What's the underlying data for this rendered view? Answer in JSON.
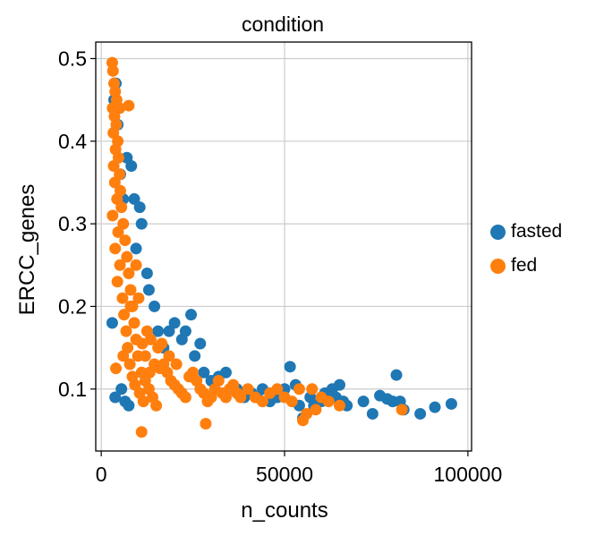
{
  "chart_data": {
    "type": "scatter",
    "title": "condition",
    "xlabel": "n_counts",
    "ylabel": "ERCC_genes",
    "xlim": [
      -1500,
      101000
    ],
    "ylim": [
      0.025,
      0.52
    ],
    "xticks": [
      0,
      50000,
      100000
    ],
    "xtick_labels": [
      "0",
      "50000",
      "100000"
    ],
    "yticks": [
      0.1,
      0.2,
      0.3,
      0.4,
      0.5
    ],
    "ytick_labels": [
      "0.1",
      "0.2",
      "0.3",
      "0.4",
      "0.5"
    ],
    "grid": true,
    "legend_position": "right",
    "series": [
      {
        "name": "fasted",
        "color": "#1f77b4",
        "points": [
          [
            3000,
            0.18
          ],
          [
            4500,
            0.42
          ],
          [
            5200,
            0.36
          ],
          [
            6000,
            0.33
          ],
          [
            7000,
            0.38
          ],
          [
            8200,
            0.37
          ],
          [
            9000,
            0.33
          ],
          [
            9500,
            0.27
          ],
          [
            10500,
            0.32
          ],
          [
            11000,
            0.3
          ],
          [
            12500,
            0.24
          ],
          [
            13000,
            0.22
          ],
          [
            14500,
            0.2
          ],
          [
            15500,
            0.17
          ],
          [
            17000,
            0.15
          ],
          [
            18500,
            0.17
          ],
          [
            20000,
            0.18
          ],
          [
            22000,
            0.16
          ],
          [
            23000,
            0.17
          ],
          [
            24500,
            0.19
          ],
          [
            25500,
            0.14
          ],
          [
            27000,
            0.155
          ],
          [
            28000,
            0.12
          ],
          [
            30000,
            0.11
          ],
          [
            32000,
            0.115
          ],
          [
            34000,
            0.12
          ],
          [
            35500,
            0.1
          ],
          [
            37000,
            0.1
          ],
          [
            39000,
            0.09
          ],
          [
            41000,
            0.095
          ],
          [
            42500,
            0.09
          ],
          [
            44000,
            0.1
          ],
          [
            46000,
            0.085
          ],
          [
            48000,
            0.09
          ],
          [
            50000,
            0.1
          ],
          [
            51500,
            0.127
          ],
          [
            53000,
            0.105
          ],
          [
            54000,
            0.08
          ],
          [
            55000,
            0.065
          ],
          [
            57000,
            0.09
          ],
          [
            58000,
            0.08
          ],
          [
            60000,
            0.085
          ],
          [
            61000,
            0.095
          ],
          [
            62000,
            0.09
          ],
          [
            63000,
            0.1
          ],
          [
            64000,
            0.09
          ],
          [
            65000,
            0.105
          ],
          [
            66000,
            0.085
          ],
          [
            67000,
            0.08
          ],
          [
            71500,
            0.085
          ],
          [
            74000,
            0.07
          ],
          [
            76000,
            0.092
          ],
          [
            78000,
            0.088
          ],
          [
            79500,
            0.085
          ],
          [
            80500,
            0.117
          ],
          [
            81500,
            0.085
          ],
          [
            82500,
            0.075
          ],
          [
            87000,
            0.07
          ],
          [
            91000,
            0.078
          ],
          [
            95500,
            0.082
          ],
          [
            4000,
            0.47
          ],
          [
            3500,
            0.45
          ],
          [
            5500,
            0.1
          ],
          [
            6500,
            0.085
          ],
          [
            7500,
            0.08
          ],
          [
            3800,
            0.09
          ]
        ]
      },
      {
        "name": "fed",
        "color": "#ff7f0e",
        "points": [
          [
            3000,
            0.495
          ],
          [
            3200,
            0.485
          ],
          [
            3500,
            0.47
          ],
          [
            3800,
            0.46
          ],
          [
            4200,
            0.45
          ],
          [
            3100,
            0.44
          ],
          [
            3600,
            0.43
          ],
          [
            4100,
            0.42
          ],
          [
            3300,
            0.41
          ],
          [
            4500,
            0.4
          ],
          [
            3900,
            0.39
          ],
          [
            4700,
            0.38
          ],
          [
            3400,
            0.37
          ],
          [
            5000,
            0.36
          ],
          [
            3700,
            0.35
          ],
          [
            5200,
            0.34
          ],
          [
            4300,
            0.33
          ],
          [
            5500,
            0.32
          ],
          [
            3100,
            0.31
          ],
          [
            6000,
            0.3
          ],
          [
            4600,
            0.29
          ],
          [
            6500,
            0.28
          ],
          [
            3800,
            0.27
          ],
          [
            7000,
            0.26
          ],
          [
            5100,
            0.25
          ],
          [
            7500,
            0.24
          ],
          [
            4400,
            0.23
          ],
          [
            8000,
            0.22
          ],
          [
            5800,
            0.21
          ],
          [
            8500,
            0.2
          ],
          [
            6200,
            0.19
          ],
          [
            9000,
            0.18
          ],
          [
            6800,
            0.17
          ],
          [
            9500,
            0.16
          ],
          [
            7200,
            0.15
          ],
          [
            10000,
            0.14
          ],
          [
            7800,
            0.13
          ],
          [
            11000,
            0.12
          ],
          [
            8500,
            0.115
          ],
          [
            12000,
            0.11
          ],
          [
            9200,
            0.105
          ],
          [
            13000,
            0.1
          ],
          [
            10500,
            0.095
          ],
          [
            14000,
            0.09
          ],
          [
            11500,
            0.085
          ],
          [
            15000,
            0.08
          ],
          [
            16000,
            0.125
          ],
          [
            17000,
            0.13
          ],
          [
            18000,
            0.12
          ],
          [
            19000,
            0.11
          ],
          [
            20000,
            0.105
          ],
          [
            21000,
            0.1
          ],
          [
            22000,
            0.095
          ],
          [
            23000,
            0.09
          ],
          [
            24000,
            0.115
          ],
          [
            25000,
            0.12
          ],
          [
            26000,
            0.11
          ],
          [
            27000,
            0.1
          ],
          [
            28000,
            0.095
          ],
          [
            29000,
            0.085
          ],
          [
            30000,
            0.09
          ],
          [
            31000,
            0.1
          ],
          [
            32000,
            0.11
          ],
          [
            33000,
            0.095
          ],
          [
            34000,
            0.09
          ],
          [
            35000,
            0.1
          ],
          [
            36000,
            0.105
          ],
          [
            37000,
            0.095
          ],
          [
            38000,
            0.09
          ],
          [
            40000,
            0.1
          ],
          [
            42000,
            0.09
          ],
          [
            44000,
            0.085
          ],
          [
            46000,
            0.095
          ],
          [
            48000,
            0.1
          ],
          [
            50000,
            0.09
          ],
          [
            52000,
            0.085
          ],
          [
            54000,
            0.1
          ],
          [
            56000,
            0.07
          ],
          [
            57500,
            0.1
          ],
          [
            58500,
            0.075
          ],
          [
            60000,
            0.09
          ],
          [
            62000,
            0.085
          ],
          [
            65000,
            0.08
          ],
          [
            82000,
            0.075
          ],
          [
            55000,
            0.062
          ],
          [
            11000,
            0.048
          ],
          [
            28500,
            0.058
          ],
          [
            5000,
            0.44
          ],
          [
            7500,
            0.443
          ],
          [
            4000,
            0.125
          ],
          [
            6000,
            0.14
          ],
          [
            8000,
            0.2
          ],
          [
            9500,
            0.25
          ],
          [
            10200,
            0.21
          ],
          [
            12500,
            0.17
          ],
          [
            13500,
            0.16
          ],
          [
            15500,
            0.15
          ],
          [
            16500,
            0.155
          ],
          [
            18500,
            0.14
          ],
          [
            20500,
            0.13
          ],
          [
            14500,
            0.13
          ],
          [
            13200,
            0.12
          ],
          [
            12000,
            0.14
          ],
          [
            11200,
            0.155
          ]
        ]
      }
    ]
  }
}
